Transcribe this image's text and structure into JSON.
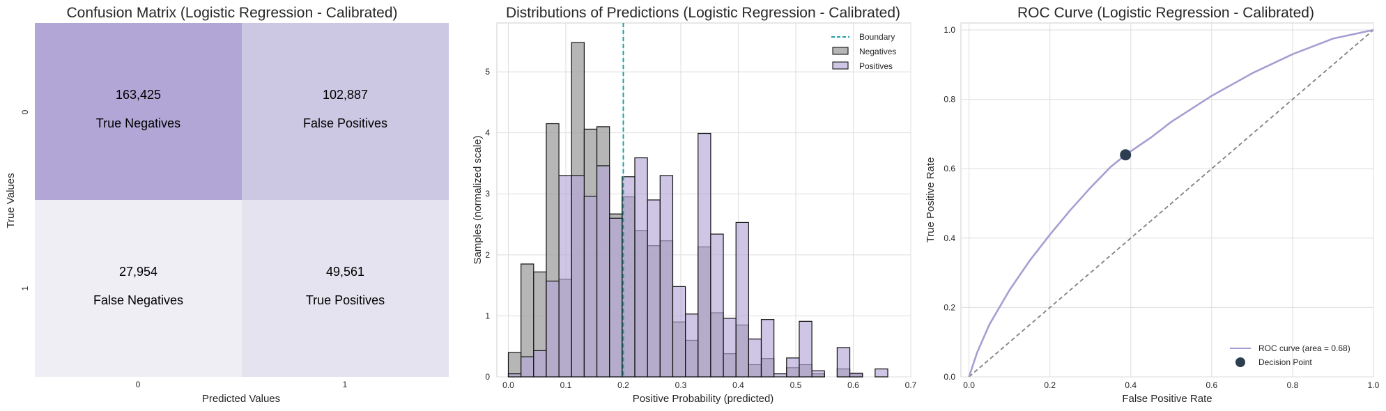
{
  "chart_data": [
    {
      "type": "heatmap",
      "title": "Confusion Matrix (Logistic Regression - Calibrated)",
      "xlabel": "Predicted Values",
      "ylabel": "True Values",
      "x_ticks": [
        "0",
        "1"
      ],
      "y_ticks": [
        "0",
        "1"
      ],
      "cells": [
        {
          "row": 0,
          "col": 0,
          "count": "163,425",
          "label": "True Negatives",
          "value": 163425,
          "color": "#b1a6d5"
        },
        {
          "row": 0,
          "col": 1,
          "count": "102,887",
          "label": "False Positives",
          "value": 102887,
          "color": "#ccc7e3"
        },
        {
          "row": 1,
          "col": 0,
          "count": "27,954",
          "label": "False Negatives",
          "value": 27954,
          "color": "#efeef5"
        },
        {
          "row": 1,
          "col": 1,
          "count": "49,561",
          "label": "True Positives",
          "value": 49561,
          "color": "#e5e3ef"
        }
      ]
    },
    {
      "type": "bar",
      "title": "Distributions of Predictions (Logistic Regression - Calibrated)",
      "xlabel": "Positive Probability (predicted)",
      "ylabel": "Samples (normalized scale)",
      "xlim": [
        -0.02,
        0.7
      ],
      "ylim": [
        0,
        5.8
      ],
      "x_ticks": [
        0.0,
        0.1,
        0.2,
        0.3,
        0.4,
        0.5,
        0.6,
        0.7
      ],
      "x_tick_labels": [
        "0.0",
        "0.1",
        "0.2",
        "0.3",
        "0.4",
        "0.5",
        "0.6",
        "0.7"
      ],
      "y_ticks": [
        0,
        1,
        2,
        3,
        4,
        5
      ],
      "y_tick_labels": [
        "0",
        "1",
        "2",
        "3",
        "4",
        "5"
      ],
      "grid": true,
      "legend_position": "top-right",
      "boundary": {
        "x": 0.2,
        "name": "Boundary",
        "color": "#17a2a8"
      },
      "bin_width": 0.022,
      "series": [
        {
          "name": "Negatives",
          "color": "#9e9e9e",
          "bins": [
            [
              0.0,
              0.4
            ],
            [
              0.022,
              1.85
            ],
            [
              0.044,
              1.72
            ],
            [
              0.066,
              4.15
            ],
            [
              0.088,
              1.6
            ],
            [
              0.11,
              5.48
            ],
            [
              0.132,
              4.06
            ],
            [
              0.154,
              4.1
            ],
            [
              0.176,
              2.67
            ],
            [
              0.198,
              2.95
            ],
            [
              0.22,
              2.4
            ],
            [
              0.242,
              2.15
            ],
            [
              0.264,
              2.23
            ],
            [
              0.286,
              0.9
            ],
            [
              0.308,
              0.6
            ],
            [
              0.33,
              2.13
            ],
            [
              0.352,
              1.05
            ],
            [
              0.374,
              0.38
            ],
            [
              0.396,
              0.85
            ],
            [
              0.418,
              0.2
            ],
            [
              0.44,
              0.3
            ],
            [
              0.462,
              0.0
            ],
            [
              0.484,
              0.15
            ],
            [
              0.506,
              0.2
            ],
            [
              0.528,
              0.05
            ],
            [
              0.55,
              0.0
            ],
            [
              0.572,
              0.13
            ],
            [
              0.594,
              0.05
            ],
            [
              0.616,
              0.0
            ],
            [
              0.638,
              0.0
            ]
          ]
        },
        {
          "name": "Positives",
          "color": "#b4a7d6",
          "bins": [
            [
              0.0,
              0.05
            ],
            [
              0.022,
              0.33
            ],
            [
              0.044,
              0.43
            ],
            [
              0.066,
              1.57
            ],
            [
              0.088,
              3.3
            ],
            [
              0.11,
              3.3
            ],
            [
              0.132,
              2.96
            ],
            [
              0.154,
              3.46
            ],
            [
              0.176,
              2.6
            ],
            [
              0.198,
              3.28
            ],
            [
              0.22,
              3.59
            ],
            [
              0.242,
              2.9
            ],
            [
              0.264,
              3.3
            ],
            [
              0.286,
              1.48
            ],
            [
              0.308,
              1.03
            ],
            [
              0.33,
              3.99
            ],
            [
              0.352,
              2.34
            ],
            [
              0.374,
              0.96
            ],
            [
              0.396,
              2.53
            ],
            [
              0.418,
              0.62
            ],
            [
              0.44,
              0.94
            ],
            [
              0.462,
              0.05
            ],
            [
              0.484,
              0.31
            ],
            [
              0.506,
              0.91
            ],
            [
              0.528,
              0.1
            ],
            [
              0.55,
              0.0
            ],
            [
              0.572,
              0.48
            ],
            [
              0.594,
              0.06
            ],
            [
              0.616,
              0.0
            ],
            [
              0.638,
              0.13
            ]
          ]
        }
      ]
    },
    {
      "type": "line",
      "title": "ROC Curve (Logistic Regression - Calibrated)",
      "xlabel": "False Positive Rate",
      "ylabel": "True Positive Rate",
      "xlim": [
        -0.02,
        1.0
      ],
      "ylim": [
        0.0,
        1.02
      ],
      "x_ticks": [
        0.0,
        0.2,
        0.4,
        0.6,
        0.8,
        1.0
      ],
      "x_tick_labels": [
        "0.0",
        "0.2",
        "0.4",
        "0.6",
        "0.8",
        "1.0"
      ],
      "y_ticks": [
        0.0,
        0.2,
        0.4,
        0.6,
        0.8,
        1.0
      ],
      "y_tick_labels": [
        "0.0",
        "0.2",
        "0.4",
        "0.6",
        "0.8",
        "1.0"
      ],
      "grid": true,
      "legend_position": "bottom-right",
      "series": [
        {
          "name": "ROC curve (area = 0.68)",
          "color": "#a89dd2",
          "x": [
            0.0,
            0.02,
            0.05,
            0.1,
            0.15,
            0.2,
            0.25,
            0.3,
            0.35,
            0.387,
            0.45,
            0.5,
            0.6,
            0.7,
            0.8,
            0.9,
            1.0
          ],
          "y": [
            0.0,
            0.07,
            0.15,
            0.25,
            0.335,
            0.41,
            0.48,
            0.545,
            0.605,
            0.64,
            0.69,
            0.735,
            0.81,
            0.875,
            0.93,
            0.975,
            1.0
          ]
        },
        {
          "name": "chance",
          "color": "#808080",
          "x": [
            0.0,
            1.0
          ],
          "y": [
            0.0,
            1.0
          ]
        }
      ],
      "decision_point": {
        "name": "Decision Point",
        "x": 0.387,
        "y": 0.64,
        "color": "#2c3e50"
      }
    }
  ]
}
